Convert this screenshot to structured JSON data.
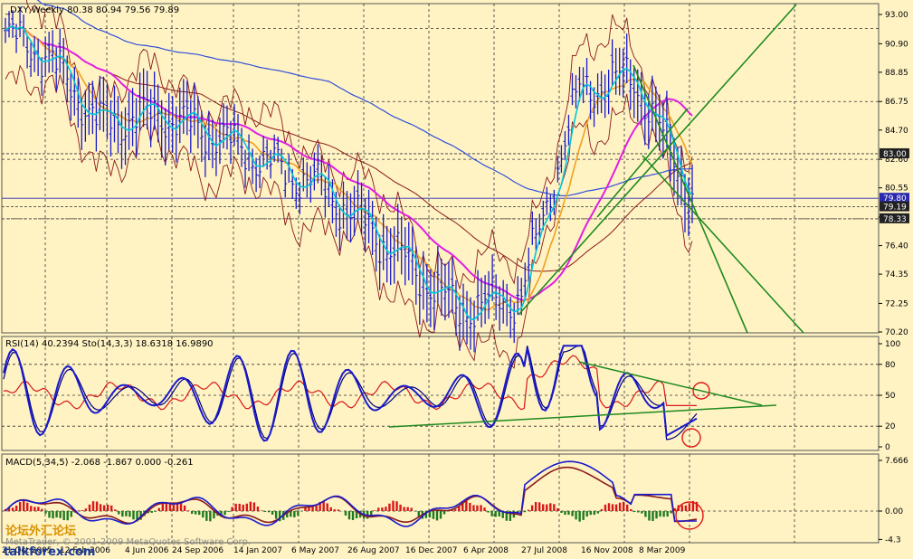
{
  "colors": {
    "background": "#fff3c4",
    "grid": "#333333",
    "price_bars": "#1a1acc",
    "fast_ma": "#00c8d8",
    "orange_ma": "#f0a020",
    "magenta_ma": "#e020e0",
    "blue_ma": "#3050d8",
    "bollinger": "#8b1a1a",
    "trendline": "#1f8a1f",
    "rsi": "#d81818",
    "stoch_main": "#1a1acc",
    "stoch_signal": "#000080",
    "macd_up": "#d81818",
    "macd_down": "#1f7a1f",
    "highlight_circle": "#e01818"
  },
  "main_panel": {
    "header": "_DXY,Weekly  80.38 80.94 79.56 79.89",
    "price_ticks": [
      "93.00",
      "90.90",
      "88.85",
      "86.75",
      "84.70",
      "82.60",
      "80.55",
      "78.45",
      "76.40",
      "74.35",
      "72.25",
      "70.20"
    ],
    "level_labels": [
      {
        "text": "83.00",
        "price": 83.0
      },
      {
        "text": "79.80",
        "price": 79.8
      },
      {
        "text": "79.19",
        "price": 79.19
      },
      {
        "text": "78.33",
        "price": 78.33
      }
    ]
  },
  "osc_panel": {
    "header": "RSI(14) 40.2394  Sto(14,3,3) 18.6318 16.9890",
    "ticks": [
      "100",
      "80",
      "50",
      "20",
      "0"
    ]
  },
  "macd_panel": {
    "header": "MACD(5,34,5) -2.068 -1.867 0.000 -0.261",
    "ticks": [
      "7.666",
      "0.00",
      "-4.3"
    ]
  },
  "x_axis": {
    "dates": [
      "21 Oct 2005",
      "12 Feb 2006",
      "4 Jun 2006",
      "24 Sep 2006",
      "14 Jan 2007",
      "6 May 2007",
      "26 Aug 2007",
      "16 Dec 2007",
      "6 Apr 2008",
      "27 Jul 2008",
      "16 Nov 2008",
      "8 Mar 2009"
    ]
  },
  "watermark": {
    "copyright": "MetaTrader, © 2001-2009 MetaQuotes Software Corp.",
    "site": "talkforex.com",
    "logo_text": "论坛外汇论坛"
  },
  "chart_data": {
    "type": "line",
    "title": "_DXY,Weekly",
    "header_ohlc": {
      "open": 80.38,
      "high": 80.94,
      "low": 79.56,
      "close": 79.89
    },
    "x_range": [
      "21 Oct 2005",
      "Jun 2009"
    ],
    "y_range": [
      70.2,
      93.0
    ],
    "series": [
      {
        "name": "_DXY",
        "x": [
          "Oct 2005",
          "Feb 2006",
          "Jun 2006",
          "Sep 2006",
          "Jan 2007",
          "May 2007",
          "Aug 2007",
          "Dec 2007",
          "Apr 2008",
          "Jul 2008",
          "Nov 2008",
          "Mar 2009",
          "Jun 2009"
        ],
        "values": [
          91.5,
          90.2,
          85.2,
          85.9,
          84.3,
          82.2,
          80.6,
          76.4,
          71.8,
          72.6,
          87.5,
          88.5,
          79.9
        ]
      }
    ],
    "indicators": {
      "rsi": {
        "period": 14,
        "value": 40.2394
      },
      "stochastic": {
        "params": "14,3,3",
        "main": 18.6318,
        "signal": 16.989
      },
      "macd": {
        "params": "5,34,5",
        "values": [
          -2.068,
          -1.867,
          0.0,
          -0.261
        ]
      }
    },
    "horizontal_levels": [
      83.0,
      79.8,
      79.19,
      78.33
    ],
    "grid": true
  }
}
